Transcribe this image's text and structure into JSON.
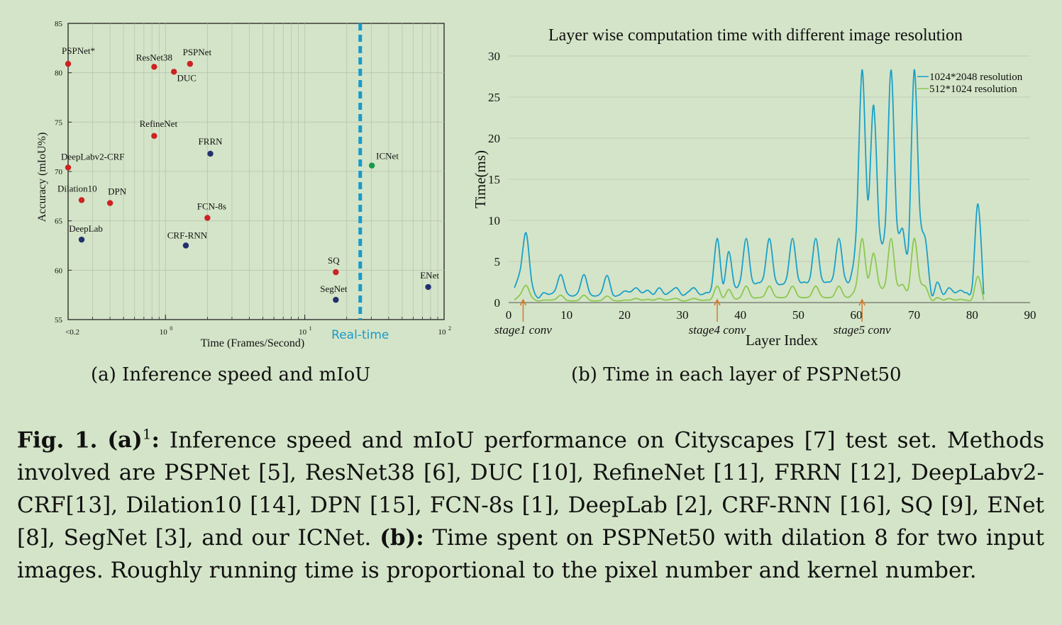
{
  "figure_a": {
    "caption": "(a) Inference speed and mIoU",
    "xlabel": "Time (Frames/Second)",
    "ylabel": "Accuracy (mIoU%)",
    "realtime_label": "Real-time",
    "x_ticks": [
      {
        "v": 0.2,
        "label": "<0.2",
        "sup": ""
      },
      {
        "v": 1,
        "label": "10",
        "sup": "0"
      },
      {
        "v": 10,
        "label": "10",
        "sup": "1"
      },
      {
        "v": 100,
        "label": "10",
        "sup": "2"
      }
    ],
    "y_ticks": [
      55,
      60,
      65,
      70,
      75,
      80,
      85
    ]
  },
  "figure_b": {
    "caption": "(b) Time in each layer of PSPNet50",
    "stage_labels": [
      "stage1 conv",
      "stage4 conv",
      "stage5 conv"
    ]
  },
  "chart_data": [
    {
      "type": "scatter",
      "title": "",
      "xlabel": "Time (Frames/Second)",
      "ylabel": "Accuracy (mIoU%)",
      "xscale": "log",
      "xlim": [
        0.2,
        100
      ],
      "ylim": [
        55,
        85
      ],
      "realtime_fps": 25,
      "grid": true,
      "colors": {
        "red": "#cc2222",
        "blue": "#23306e",
        "green": "#1a9a4a",
        "realtime": "#1a9ac8"
      },
      "points": [
        {
          "name": "PSPNet*",
          "x": 0.2,
          "y": 80.9,
          "color": "red"
        },
        {
          "name": "ResNet38",
          "x": 0.83,
          "y": 80.6,
          "color": "red"
        },
        {
          "name": "PSPNet",
          "x": 1.5,
          "y": 80.9,
          "color": "red"
        },
        {
          "name": "DUC",
          "x": 1.15,
          "y": 80.1,
          "color": "red"
        },
        {
          "name": "RefineNet",
          "x": 0.83,
          "y": 73.6,
          "color": "red"
        },
        {
          "name": "FRRN",
          "x": 2.1,
          "y": 71.8,
          "color": "blue"
        },
        {
          "name": "DeepLabv2-CRF",
          "x": 0.2,
          "y": 70.4,
          "color": "red"
        },
        {
          "name": "ICNet",
          "x": 30.3,
          "y": 70.6,
          "color": "green"
        },
        {
          "name": "Dilation10",
          "x": 0.25,
          "y": 67.1,
          "color": "red"
        },
        {
          "name": "DPN",
          "x": 0.4,
          "y": 66.8,
          "color": "red"
        },
        {
          "name": "FCN-8s",
          "x": 2.0,
          "y": 65.3,
          "color": "red"
        },
        {
          "name": "DeepLab",
          "x": 0.25,
          "y": 63.1,
          "color": "blue"
        },
        {
          "name": "CRF-RNN",
          "x": 1.4,
          "y": 62.5,
          "color": "blue"
        },
        {
          "name": "SQ",
          "x": 16.7,
          "y": 59.8,
          "color": "red"
        },
        {
          "name": "SegNet",
          "x": 16.7,
          "y": 57.0,
          "color": "blue"
        },
        {
          "name": "ENet",
          "x": 76.9,
          "y": 58.3,
          "color": "blue"
        }
      ]
    },
    {
      "type": "line",
      "title": "Layer wise computation time with different image resolution",
      "xlabel": "Layer Index",
      "ylabel": "Time(ms)",
      "xlim": [
        0,
        90
      ],
      "ylim": [
        0,
        30
      ],
      "x_ticks": [
        0,
        10,
        20,
        30,
        40,
        50,
        60,
        70,
        80,
        90
      ],
      "y_ticks": [
        0,
        5,
        10,
        15,
        20,
        25,
        30
      ],
      "legend": "top-right",
      "stage_markers": [
        2.5,
        36,
        61
      ],
      "series": [
        {
          "name": "1024*2048 resolution",
          "color": "#1aa0c8",
          "x": [
            1,
            2,
            3,
            4,
            5,
            6,
            7,
            8,
            9,
            10,
            11,
            12,
            13,
            14,
            15,
            16,
            17,
            18,
            19,
            20,
            21,
            22,
            23,
            24,
            25,
            26,
            27,
            28,
            29,
            30,
            31,
            32,
            33,
            34,
            35,
            36,
            37,
            38,
            39,
            40,
            41,
            42,
            43,
            44,
            45,
            46,
            47,
            48,
            49,
            50,
            51,
            52,
            53,
            54,
            55,
            56,
            57,
            58,
            59,
            60,
            61,
            62,
            63,
            64,
            65,
            66,
            67,
            68,
            69,
            70,
            71,
            72,
            73,
            74,
            75,
            76,
            77,
            78,
            79,
            80,
            81,
            82
          ],
          "values": [
            1.8,
            4.0,
            8.5,
            2.5,
            0.6,
            1.2,
            1.0,
            1.5,
            3.4,
            1.3,
            0.8,
            1.3,
            3.4,
            1.2,
            0.8,
            1.3,
            3.3,
            1.0,
            0.9,
            1.4,
            1.3,
            1.8,
            1.2,
            1.5,
            1.0,
            1.8,
            1.0,
            1.4,
            1.8,
            0.9,
            1.3,
            1.8,
            1.0,
            1.2,
            1.9,
            7.8,
            2.3,
            6.2,
            2.1,
            2.8,
            7.8,
            2.9,
            2.4,
            3.2,
            7.8,
            3.0,
            2.2,
            3.1,
            7.8,
            3.0,
            2.5,
            3.0,
            7.8,
            3.1,
            2.5,
            3.2,
            7.8,
            3.2,
            3.0,
            9.0,
            28.3,
            12.5,
            24.0,
            9.0,
            9.5,
            28.3,
            10.0,
            9.0,
            7.0,
            28.3,
            11.0,
            7.5,
            1.0,
            2.5,
            1.0,
            1.8,
            1.2,
            1.5,
            1.2,
            2.0,
            12.0,
            1.0
          ]
        },
        {
          "name": "512*1024 resolution",
          "color": "#8cc850",
          "x": [
            1,
            2,
            3,
            4,
            5,
            6,
            7,
            8,
            9,
            10,
            11,
            12,
            13,
            14,
            15,
            16,
            17,
            18,
            19,
            20,
            21,
            22,
            23,
            24,
            25,
            26,
            27,
            28,
            29,
            30,
            31,
            32,
            33,
            34,
            35,
            36,
            37,
            38,
            39,
            40,
            41,
            42,
            43,
            44,
            45,
            46,
            47,
            48,
            49,
            50,
            51,
            52,
            53,
            54,
            55,
            56,
            57,
            58,
            59,
            60,
            61,
            62,
            63,
            64,
            65,
            66,
            67,
            68,
            69,
            70,
            71,
            72,
            73,
            74,
            75,
            76,
            77,
            78,
            79,
            80,
            81,
            82
          ],
          "values": [
            0.3,
            1.0,
            2.1,
            0.7,
            0.2,
            0.3,
            0.3,
            0.4,
            0.9,
            0.3,
            0.2,
            0.3,
            0.9,
            0.3,
            0.2,
            0.3,
            0.8,
            0.3,
            0.2,
            0.3,
            0.3,
            0.5,
            0.3,
            0.4,
            0.3,
            0.5,
            0.3,
            0.4,
            0.5,
            0.2,
            0.3,
            0.5,
            0.3,
            0.3,
            0.5,
            2.0,
            0.6,
            1.6,
            0.5,
            0.7,
            2.0,
            0.7,
            0.6,
            0.8,
            2.0,
            0.8,
            0.6,
            0.8,
            2.0,
            0.8,
            0.6,
            0.8,
            2.0,
            0.8,
            0.6,
            0.8,
            2.0,
            0.8,
            0.8,
            2.3,
            7.8,
            3.0,
            6.0,
            2.2,
            2.4,
            7.8,
            2.5,
            2.2,
            1.8,
            7.8,
            2.8,
            1.9,
            0.3,
            0.6,
            0.3,
            0.5,
            0.3,
            0.4,
            0.3,
            0.5,
            3.2,
            0.3
          ]
        }
      ]
    }
  ],
  "caption": {
    "label": "Fig. 1.",
    "part_a": "(a)",
    "part_a_sup": "1",
    "part_a_colon": ":",
    "text_a": " Inference speed and mIoU performance on Cityscapes [7] test set. Methods involved are PSPNet [5], ResNet38 [6], DUC [10], RefineNet [11], FRRN [12], DeepLabv2-CRF[13], Dilation10 [14], DPN [15], FCN-8s [1], DeepLab [2], CRF-RNN [16], SQ [9], ENet [8], SegNet [3], and our ICNet. ",
    "part_b": "(b):",
    "text_b": " Time spent on PSPNet50 with dilation 8 for two input images. Roughly running time is proportional to the pixel number and kernel number."
  }
}
